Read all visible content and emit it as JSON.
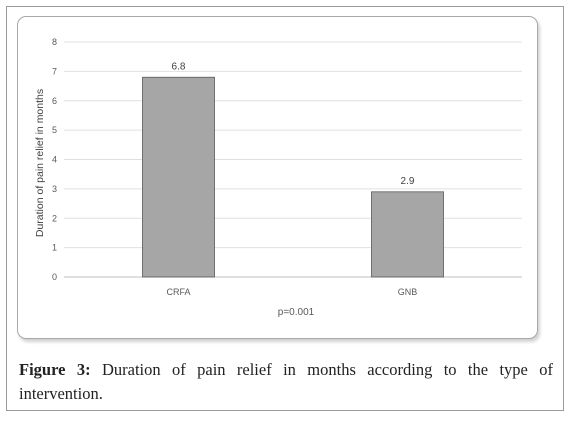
{
  "chart_data": {
    "type": "bar",
    "categories": [
      "CRFA",
      "GNB"
    ],
    "values": [
      6.8,
      2.9
    ],
    "data_labels": [
      "6.8",
      "2.9"
    ],
    "title": "",
    "xlabel": "",
    "ylabel": "Duration of pain relief in months",
    "ylim": [
      0,
      8
    ],
    "yticks": [
      "0",
      "1",
      "2",
      "3",
      "4",
      "5",
      "6",
      "7",
      "8"
    ],
    "grid": true,
    "annotation": "p=0.001",
    "bar_color": "#a6a6a6",
    "bar_edge_color": "#595959"
  },
  "caption": {
    "label": "Figure 3:",
    "text": " Duration of pain relief in months according to the type of intervention."
  }
}
